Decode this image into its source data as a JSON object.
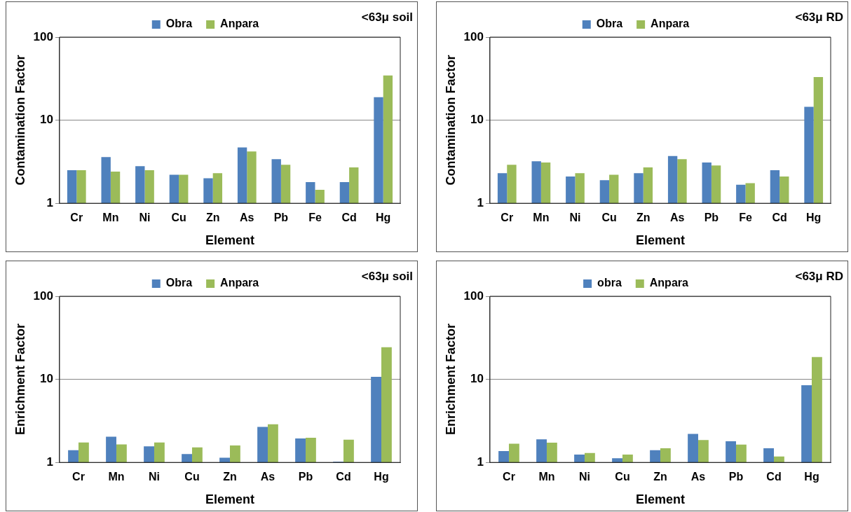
{
  "chart_data": [
    {
      "type": "bar",
      "annotations": [
        "<63μ soil"
      ],
      "xlabel": "Element",
      "ylabel": "Contamination Factor",
      "categories": [
        "Cr",
        "Mn",
        "Ni",
        "Cu",
        "Zn",
        "As",
        "Pb",
        "Fe",
        "Cd",
        "Hg"
      ],
      "series": [
        {
          "name": "Obra",
          "color": "#4f81bd",
          "values": [
            2.5,
            3.6,
            2.8,
            2.2,
            2.0,
            4.7,
            3.4,
            1.8,
            1.8,
            18.9
          ]
        },
        {
          "name": "Anpara",
          "color": "#9bbb59",
          "values": [
            2.5,
            2.4,
            2.5,
            2.2,
            2.3,
            4.2,
            2.9,
            1.45,
            2.7,
            34.5
          ]
        }
      ],
      "log": "y",
      "ylim": [
        1,
        100
      ],
      "yticks": [
        1,
        10,
        100
      ],
      "grid": "y",
      "legend": "top"
    },
    {
      "type": "bar",
      "annotations": [
        "<63μ RD"
      ],
      "xlabel": "Element",
      "ylabel": "Contamination Factor",
      "categories": [
        "Cr",
        "Mn",
        "Ni",
        "Cu",
        "Zn",
        "As",
        "Pb",
        "Fe",
        "Cd",
        "Hg"
      ],
      "series": [
        {
          "name": "Obra",
          "color": "#4f81bd",
          "values": [
            2.3,
            3.2,
            2.1,
            1.9,
            2.3,
            3.7,
            3.1,
            1.67,
            2.5,
            14.5
          ]
        },
        {
          "name": "Anpara",
          "color": "#9bbb59",
          "values": [
            2.9,
            3.1,
            2.3,
            2.2,
            2.7,
            3.4,
            2.85,
            1.75,
            2.1,
            33
          ]
        }
      ],
      "log": "y",
      "ylim": [
        1,
        100
      ],
      "yticks": [
        1,
        10,
        100
      ],
      "grid": "y",
      "legend": "top"
    },
    {
      "type": "bar",
      "annotations": [
        "<63μ soil"
      ],
      "xlabel": "Element",
      "ylabel": "Enrichment Factor",
      "categories": [
        "Cr",
        "Mn",
        "Ni",
        "Cu",
        "Zn",
        "As",
        "Pb",
        "Cd",
        "Hg"
      ],
      "series": [
        {
          "name": "Obra",
          "color": "#4f81bd",
          "values": [
            1.4,
            2.04,
            1.56,
            1.26,
            1.14,
            2.67,
            1.94,
            1.02,
            10.7
          ]
        },
        {
          "name": "Anpara",
          "color": "#9bbb59",
          "values": [
            1.74,
            1.65,
            1.74,
            1.52,
            1.6,
            2.88,
            1.98,
            1.88,
            24.4
          ]
        }
      ],
      "log": "y",
      "ylim": [
        1,
        100
      ],
      "yticks": [
        1,
        10,
        100
      ],
      "grid": "y",
      "legend": "top"
    },
    {
      "type": "bar",
      "annotations": [
        "<63μ RD"
      ],
      "xlabel": "Element",
      "ylabel": "Enrichment Factor",
      "categories": [
        "Cr",
        "Mn",
        "Ni",
        "Cu",
        "Zn",
        "As",
        "Pb",
        "Cd",
        "Hg"
      ],
      "series": [
        {
          "name": "obra",
          "color": "#4f81bd",
          "values": [
            1.37,
            1.9,
            1.24,
            1.12,
            1.4,
            2.2,
            1.8,
            1.48,
            8.5
          ]
        },
        {
          "name": "Anpara",
          "color": "#9bbb59",
          "values": [
            1.68,
            1.73,
            1.3,
            1.24,
            1.48,
            1.86,
            1.64,
            1.18,
            18.6
          ]
        }
      ],
      "log": "y",
      "ylim": [
        1,
        100
      ],
      "yticks": [
        1,
        10,
        100
      ],
      "grid": "y",
      "legend": "top"
    }
  ]
}
